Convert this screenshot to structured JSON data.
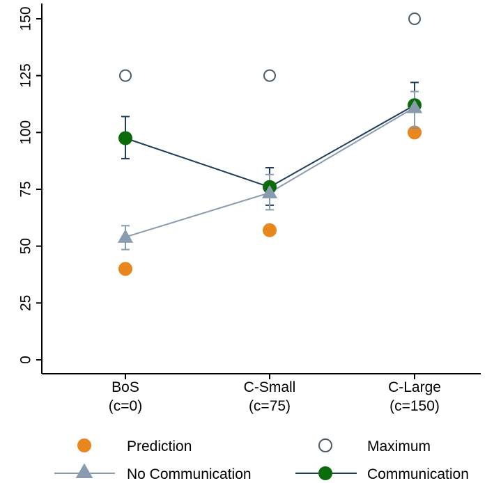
{
  "chart_data": {
    "type": "line",
    "title": "",
    "xlabel": "",
    "ylabel": "",
    "categories": [
      "BoS\n(c=0)",
      "C-Small\n(c=75)",
      "C-Large\n(c=150)"
    ],
    "category_labels": [
      {
        "line1": "BoS",
        "line2": "(c=0)"
      },
      {
        "line1": "C-Small",
        "line2": "(c=75)"
      },
      {
        "line1": "C-Large",
        "line2": "(c=150)"
      }
    ],
    "ylim": [
      -5,
      155
    ],
    "yticks": [
      0,
      25,
      50,
      75,
      100,
      125,
      150
    ],
    "grid": false,
    "legend_position": "bottom",
    "series": [
      {
        "name": "Prediction",
        "kind": "marker",
        "marker": "filled-circle",
        "color": "#E8871E",
        "values": [
          40,
          57,
          100
        ]
      },
      {
        "name": "Maximum",
        "kind": "marker",
        "marker": "hollow-circle",
        "color": "#4A5A6A",
        "values": [
          125,
          125,
          150
        ]
      },
      {
        "name": "No Communication",
        "kind": "line",
        "marker": "triangle",
        "color": "#8A9BB0",
        "values": [
          54,
          73.5,
          111
        ],
        "error_low": [
          48.5,
          66,
          102
        ],
        "error_high": [
          59,
          81.5,
          118
        ]
      },
      {
        "name": "Communication",
        "kind": "line",
        "marker": "filled-circle",
        "color": "#0B6B0B",
        "line_color": "#1F3B5E",
        "values": [
          97.5,
          76,
          112
        ],
        "error_low": [
          88.5,
          68,
          102
        ],
        "error_high": [
          107,
          84.5,
          122
        ]
      }
    ]
  }
}
